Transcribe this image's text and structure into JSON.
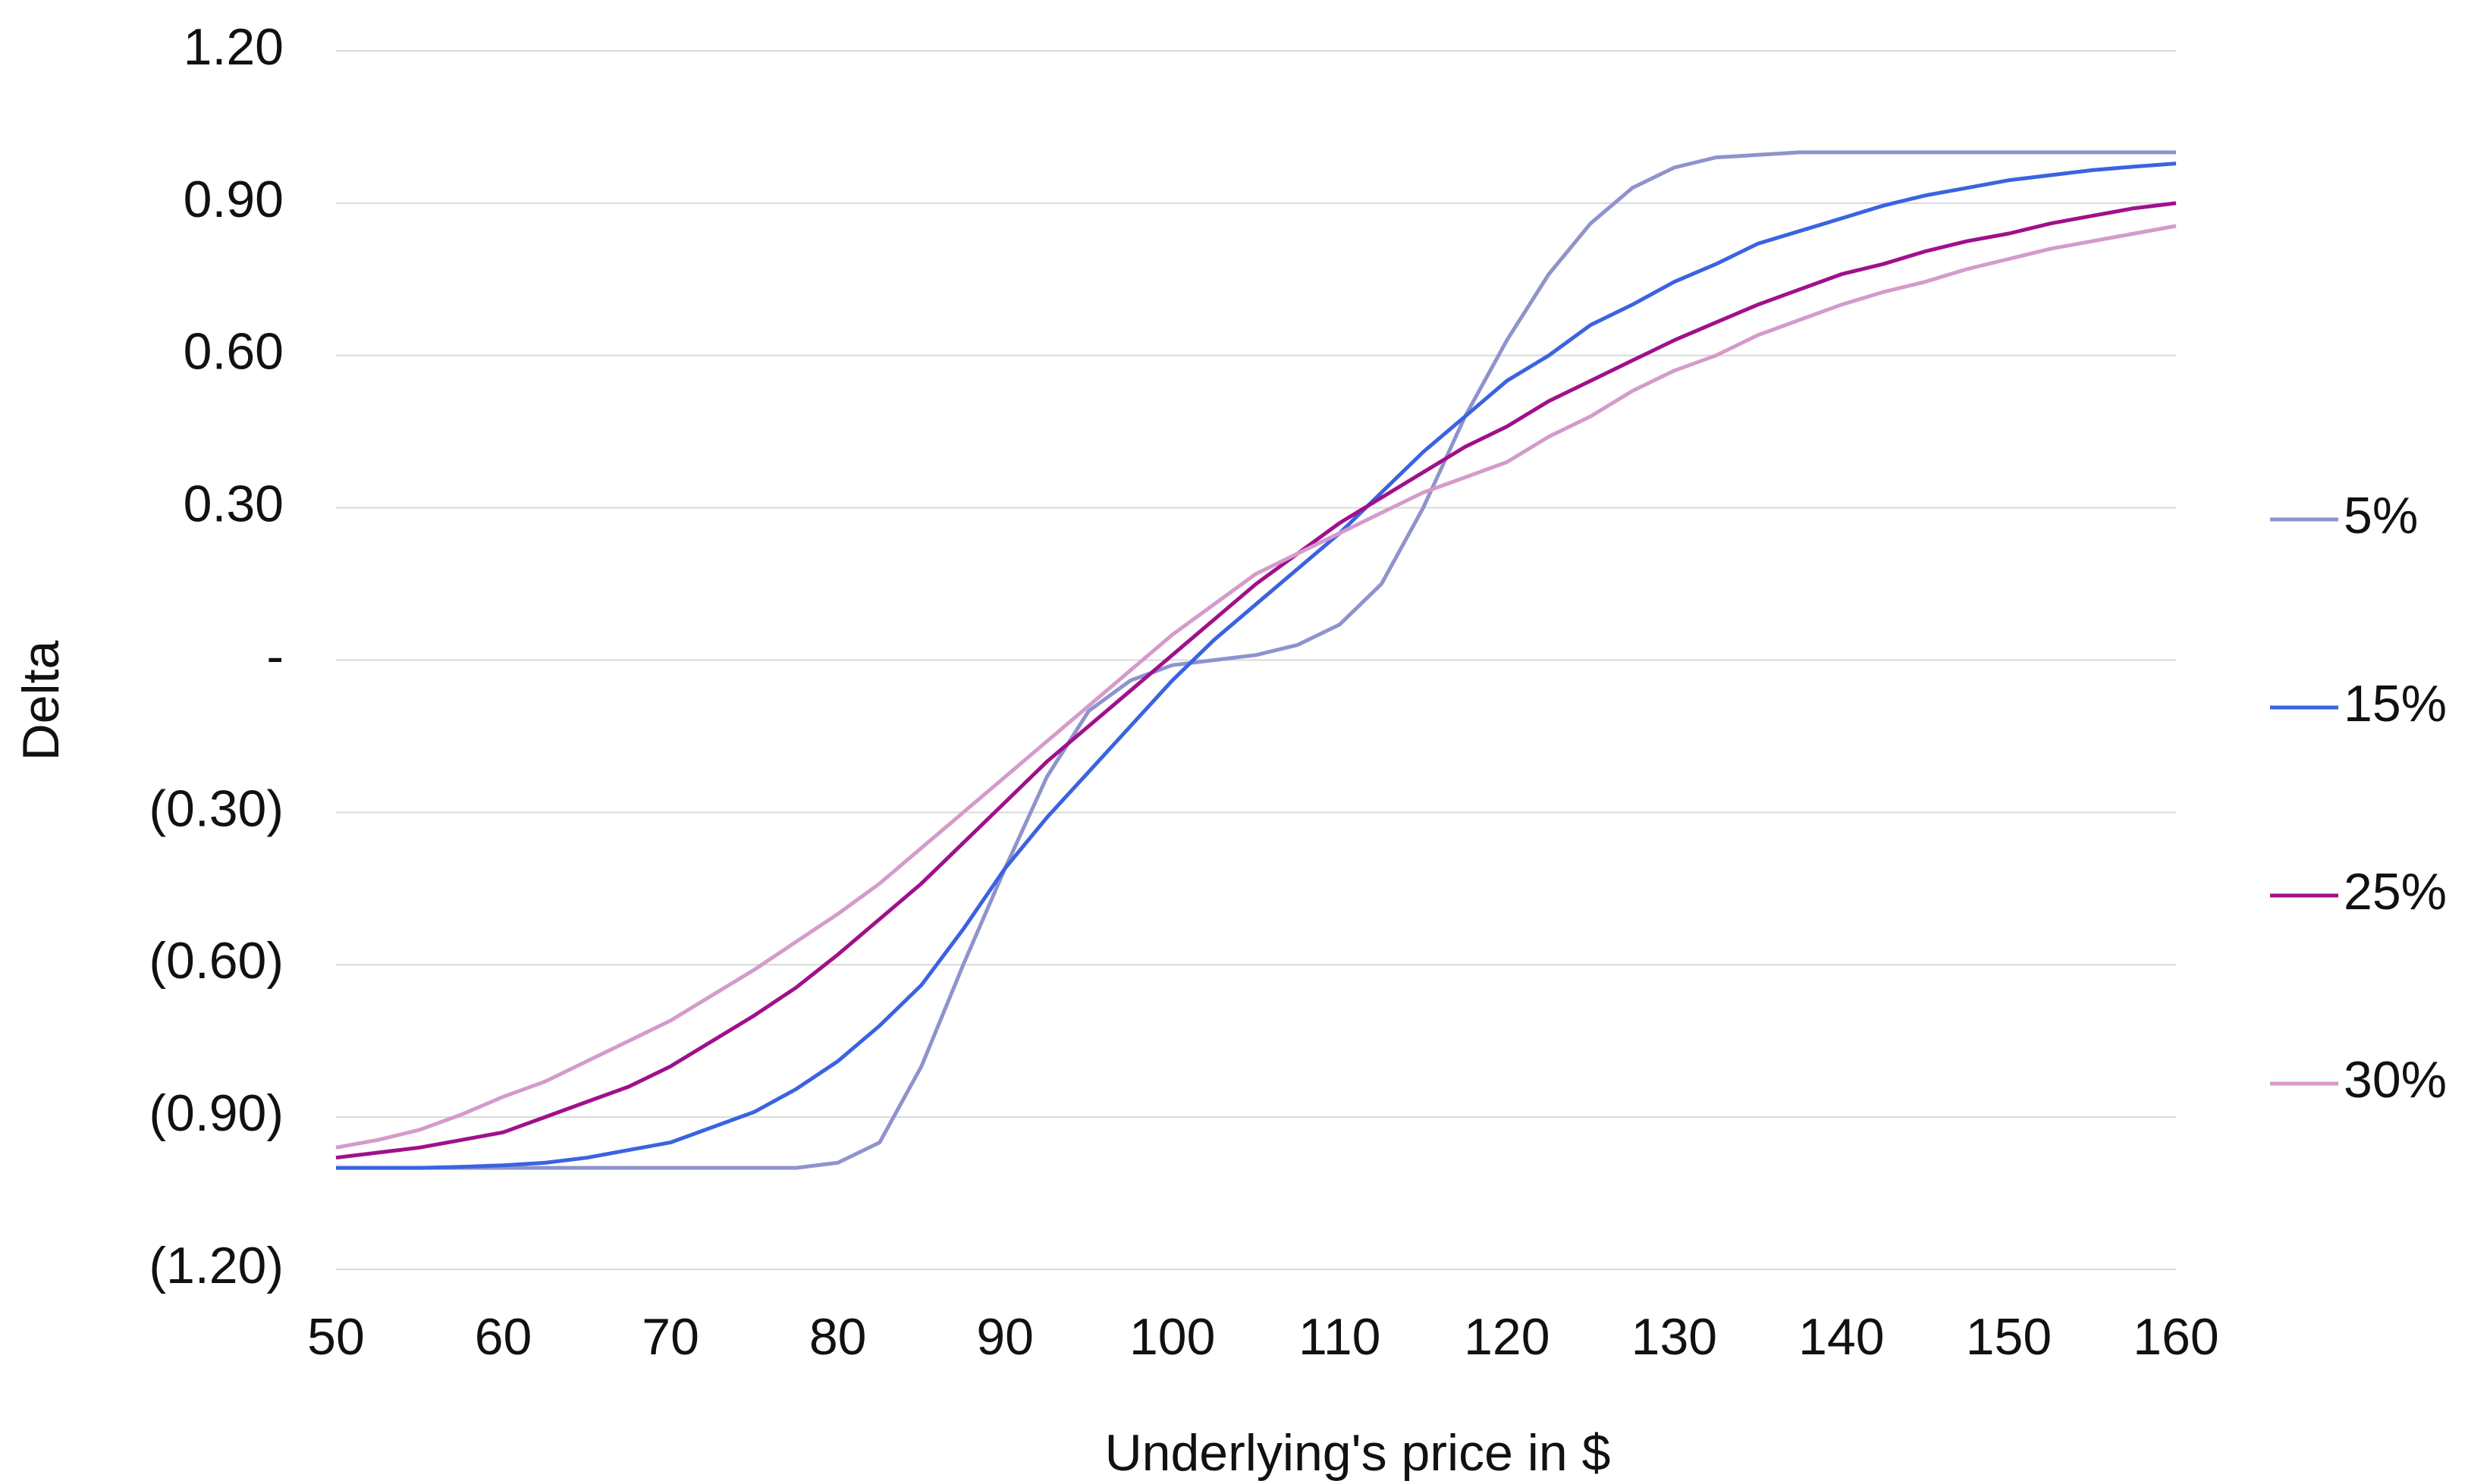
{
  "chart_data": {
    "type": "line",
    "x_label": "Underlying's price in $",
    "y_label": "Delta",
    "x": [
      50,
      52.5,
      55,
      57.5,
      60,
      62.5,
      65,
      67.5,
      70,
      72.5,
      75,
      77.5,
      80,
      82.5,
      85,
      87.5,
      90,
      92.5,
      95,
      97.5,
      100,
      102.5,
      105,
      107.5,
      110,
      112.5,
      115,
      117.5,
      120,
      122.5,
      125,
      127.5,
      130,
      132.5,
      135,
      137.5,
      140,
      142.5,
      145,
      147.5,
      150,
      152.5,
      155,
      157.5,
      160
    ],
    "series": [
      {
        "name": "5%",
        "color": "#8f93cc",
        "values": [
          -1,
          -1,
          -1,
          -1,
          -1,
          -1,
          -1,
          -1,
          -1,
          -1,
          -1,
          -1,
          -0.99,
          -0.95,
          -0.8,
          -0.6,
          -0.41,
          -0.23,
          -0.1,
          -0.04,
          -0.01,
          0,
          0.01,
          0.03,
          0.07,
          0.15,
          0.3,
          0.48,
          0.63,
          0.76,
          0.86,
          0.93,
          0.97,
          0.99,
          0.995,
          1,
          1,
          1,
          1,
          1,
          1,
          1,
          1,
          1,
          1
        ]
      },
      {
        "name": "15%",
        "color": "#3b63e0",
        "values": [
          -1,
          -1,
          -1,
          -0.998,
          -0.995,
          -0.99,
          -0.98,
          -0.965,
          -0.95,
          -0.92,
          -0.89,
          -0.845,
          -0.79,
          -0.72,
          -0.64,
          -0.53,
          -0.41,
          -0.31,
          -0.22,
          -0.13,
          -0.04,
          0.04,
          0.11,
          0.18,
          0.25,
          0.33,
          0.41,
          0.48,
          0.55,
          0.6,
          0.66,
          0.7,
          0.745,
          0.78,
          0.82,
          0.845,
          0.87,
          0.895,
          0.915,
          0.93,
          0.945,
          0.955,
          0.965,
          0.972,
          0.978
        ]
      },
      {
        "name": "25%",
        "color": "#a0108a",
        "values": [
          -0.98,
          -0.97,
          -0.96,
          -0.945,
          -0.93,
          -0.9,
          -0.87,
          -0.84,
          -0.8,
          -0.75,
          -0.7,
          -0.645,
          -0.58,
          -0.51,
          -0.44,
          -0.36,
          -0.28,
          -0.2,
          -0.13,
          -0.06,
          0.01,
          0.08,
          0.15,
          0.21,
          0.27,
          0.32,
          0.37,
          0.42,
          0.46,
          0.51,
          0.55,
          0.59,
          0.63,
          0.665,
          0.7,
          0.73,
          0.76,
          0.78,
          0.805,
          0.825,
          0.84,
          0.86,
          0.875,
          0.89,
          0.9
        ]
      },
      {
        "name": "30%",
        "color": "#d49bca",
        "values": [
          -0.96,
          -0.945,
          -0.925,
          -0.895,
          -0.86,
          -0.83,
          -0.79,
          -0.75,
          -0.71,
          -0.66,
          -0.61,
          -0.555,
          -0.5,
          -0.44,
          -0.37,
          -0.3,
          -0.23,
          -0.16,
          -0.09,
          -0.02,
          0.05,
          0.11,
          0.17,
          0.21,
          0.25,
          0.29,
          0.33,
          0.36,
          0.39,
          0.44,
          0.48,
          0.53,
          0.57,
          0.6,
          0.64,
          0.67,
          0.7,
          0.725,
          0.745,
          0.77,
          0.79,
          0.81,
          0.825,
          0.84,
          0.855
        ]
      }
    ],
    "xlim": [
      50,
      160
    ],
    "xticks": [
      50,
      60,
      70,
      80,
      90,
      100,
      110,
      120,
      130,
      140,
      150,
      160
    ],
    "ylim": [
      -1.2,
      1.2
    ],
    "yticks": [
      {
        "value": 1.2,
        "label": "1.20"
      },
      {
        "value": 0.9,
        "label": "0.90"
      },
      {
        "value": 0.6,
        "label": "0.60"
      },
      {
        "value": 0.3,
        "label": "0.30"
      },
      {
        "value": 0,
        "label": "-"
      },
      {
        "value": -0.3,
        "label": "(0.30)"
      },
      {
        "value": -0.6,
        "label": "(0.60)"
      },
      {
        "value": -0.9,
        "label": "(0.90)"
      },
      {
        "value": -1.2,
        "label": "(1.20)"
      }
    ],
    "grid": true,
    "legend": "right"
  }
}
